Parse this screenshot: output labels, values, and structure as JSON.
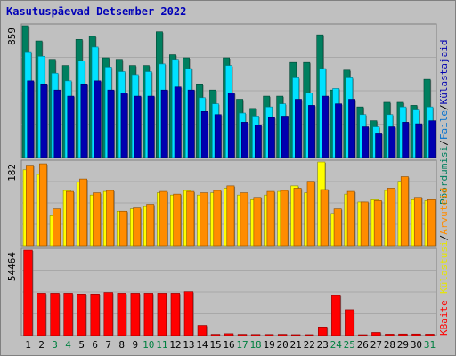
{
  "title": "Kasutuspäevad Detsember 2022",
  "chart_data": {
    "type": "bar",
    "x": [
      "1",
      "2",
      "3",
      "4",
      "5",
      "6",
      "7",
      "8",
      "9",
      "10",
      "11",
      "12",
      "13",
      "14",
      "15",
      "16",
      "17",
      "18",
      "19",
      "20",
      "21",
      "22",
      "23",
      "24",
      "25",
      "26",
      "27",
      "28",
      "29",
      "30",
      "31"
    ],
    "x_colors": [
      "#000000",
      "#000000",
      "#008040",
      "#008040",
      "#000000",
      "#000000",
      "#000000",
      "#000000",
      "#000000",
      "#008040",
      "#008040",
      "#000000",
      "#000000",
      "#000000",
      "#000000",
      "#000000",
      "#008040",
      "#008040",
      "#000000",
      "#000000",
      "#000000",
      "#000000",
      "#000000",
      "#008040",
      "#008040",
      "#000000",
      "#000000",
      "#000000",
      "#000000",
      "#000000",
      "#008040"
    ],
    "panels": [
      {
        "ymax_label": "859",
        "ymax": 859,
        "series": [
          {
            "name": "Pöördumisi",
            "color": "#007f5f",
            "values": [
              859,
              760,
              640,
              600,
              770,
              790,
              650,
              640,
              600,
              600,
              820,
              670,
              650,
              480,
              440,
              650,
              380,
              320,
              400,
              400,
              620,
              620,
              800,
              440,
              570,
              330,
              240,
              360,
              360,
              340,
              510
            ]
          },
          {
            "name": "Faile",
            "color": "#00e1ff",
            "values": [
              690,
              660,
              550,
              500,
              630,
              720,
              590,
              560,
              540,
              560,
              610,
              640,
              580,
              390,
              350,
              600,
              290,
              270,
              330,
              350,
              520,
              420,
              580,
              450,
              520,
              280,
              200,
              280,
              330,
              310,
              330
            ]
          },
          {
            "name": "Külastajaid",
            "color": "#0000b0",
            "values": [
              500,
              480,
              440,
              400,
              480,
              500,
              440,
              420,
              400,
              400,
              440,
              460,
              440,
              300,
              280,
              420,
              230,
              210,
              260,
              270,
              380,
              340,
              400,
              350,
              380,
              200,
              160,
              200,
              230,
              220,
              240
            ]
          }
        ]
      },
      {
        "ymax_label": "182",
        "ymax": 182,
        "series": [
          {
            "name": "Külastusi",
            "color": "#ffff00",
            "values": [
              165,
              155,
              65,
              120,
              138,
              110,
              118,
              75,
              80,
              85,
              115,
              110,
              120,
              110,
              115,
              125,
              110,
              100,
              110,
              118,
              130,
              115,
              182,
              70,
              112,
              95,
              100,
              120,
              140,
              100,
              98
            ]
          },
          {
            "name": "Arvuteid",
            "color": "#ff8c00",
            "values": [
              175,
              178,
              80,
              118,
              145,
              115,
              120,
              75,
              82,
              90,
              118,
              112,
              118,
              115,
              120,
              130,
              115,
              105,
              118,
              120,
              125,
              140,
              122,
              80,
              118,
              95,
              98,
              125,
              150,
              105,
              100
            ]
          }
        ]
      },
      {
        "ymax_label": "54464",
        "ymax": 54464,
        "series": [
          {
            "name": "KBaite",
            "color": "#ff0000",
            "values": [
              54464,
              27000,
              27000,
              27000,
              26500,
              26500,
              27500,
              27000,
              27000,
              27000,
              27000,
              27000,
              28000,
              6500,
              800,
              1200,
              800,
              700,
              700,
              800,
              600,
              600,
              5500,
              25500,
              16500,
              500,
              2000,
              900,
              1000,
              1000,
              900
            ]
          }
        ]
      }
    ]
  },
  "right_legend": {
    "top": [
      {
        "text": "Pöördumisi",
        "color": "#007f5f"
      },
      {
        "text": "/",
        "color": "#000000"
      },
      {
        "text": "Faile",
        "color": "#0070d0"
      },
      {
        "text": "/",
        "color": "#000000"
      },
      {
        "text": "Külastajaid",
        "color": "#0000b0"
      }
    ],
    "middle": [
      {
        "text": "Külastusi",
        "color": "#e6e600"
      },
      {
        "text": "/",
        "color": "#000000"
      },
      {
        "text": "Arvuteid",
        "color": "#ff8c00"
      }
    ],
    "bottom": [
      {
        "text": "KBaite",
        "color": "#ff0000"
      }
    ]
  }
}
